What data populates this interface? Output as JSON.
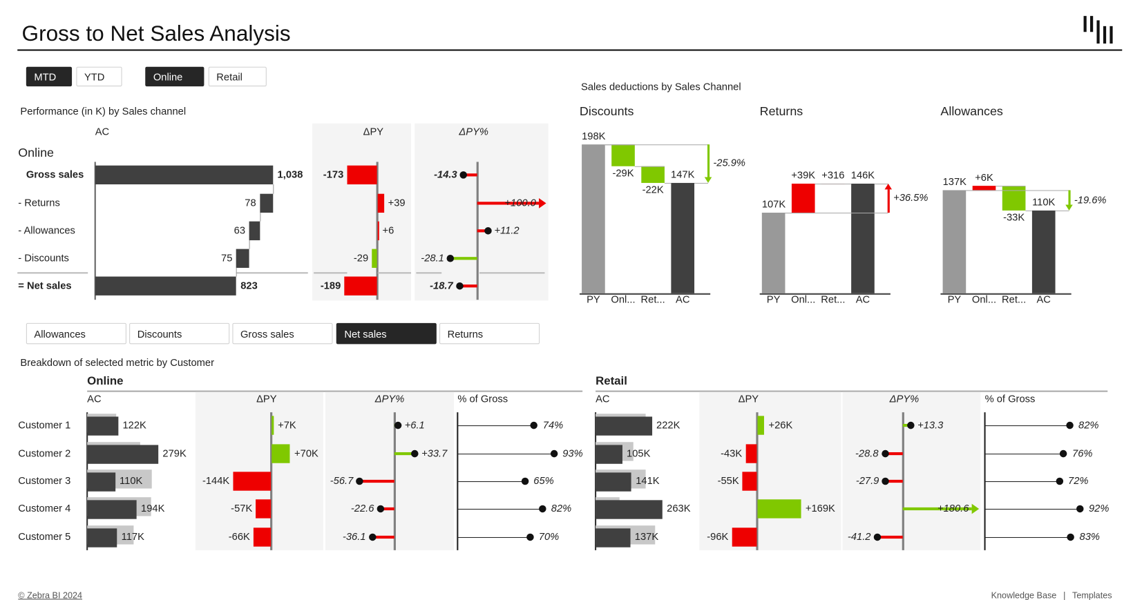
{
  "header": {
    "title": "Gross to Net Sales Analysis",
    "logo": "bars-logo"
  },
  "filters": {
    "period": [
      {
        "label": "MTD",
        "selected": true
      },
      {
        "label": "YTD",
        "selected": false
      }
    ],
    "channel": [
      {
        "label": "Online",
        "selected": true
      },
      {
        "label": "Retail",
        "selected": false
      }
    ]
  },
  "performance": {
    "title": "Performance (in K) by Sales channel",
    "channel": "Online",
    "headers": {
      "ac": "AC",
      "dpy": "ΔPY",
      "dpyp": "ΔPY%"
    },
    "rows": [
      {
        "label": "Gross sales",
        "type": "total",
        "ac": 1038,
        "ac_label": "1,038",
        "dpy": -173,
        "dpy_label": "-173",
        "dpyp": -14.3,
        "dpyp_label": "-14.3"
      },
      {
        "label": "- Returns",
        "type": "deduction",
        "ac": 78,
        "ac_label": "78",
        "dpy": 39,
        "dpy_label": "+39",
        "dpyp": 100.0,
        "dpyp_label": "+100.0"
      },
      {
        "label": "- Allowances",
        "type": "deduction",
        "ac": 63,
        "ac_label": "63",
        "dpy": 6,
        "dpy_label": "+6",
        "dpyp": 11.2,
        "dpyp_label": "+11.2"
      },
      {
        "label": "- Discounts",
        "type": "deduction",
        "ac": 75,
        "ac_label": "75",
        "dpy": -29,
        "dpy_label": "-29",
        "dpyp": -28.1,
        "dpyp_label": "-28.1"
      },
      {
        "label": "= Net sales",
        "type": "result",
        "ac": 823,
        "ac_label": "823",
        "dpy": -189,
        "dpy_label": "-189",
        "dpyp": -18.7,
        "dpyp_label": "-18.7"
      }
    ]
  },
  "deductions": {
    "title": "Sales deductions by Sales Channel",
    "charts": [
      {
        "title": "Discounts",
        "categories": [
          "PY",
          "Onl...",
          "Ret...",
          "AC"
        ],
        "py": 198,
        "py_label": "198K",
        "steps": [
          -29,
          -22
        ],
        "step_labels": [
          "-29K",
          "-22K"
        ],
        "ac": 147,
        "ac_label": "147K",
        "change_label": "-25.9%"
      },
      {
        "title": "Returns",
        "categories": [
          "PY",
          "Onl...",
          "Ret...",
          "AC"
        ],
        "py": 107,
        "py_label": "107K",
        "steps": [
          39,
          0.316
        ],
        "step_labels": [
          "+39K",
          "+316"
        ],
        "ac": 146,
        "ac_label": "146K",
        "change_label": "+36.5%"
      },
      {
        "title": "Allowances",
        "categories": [
          "PY",
          "Onl...",
          "Ret...",
          "AC"
        ],
        "py": 137,
        "py_label": "137K",
        "steps": [
          6,
          -33
        ],
        "step_labels": [
          "+6K",
          "-33K"
        ],
        "ac": 110,
        "ac_label": "110K",
        "change_label": "-19.6%"
      }
    ]
  },
  "metric_tabs": [
    {
      "label": "Allowances",
      "selected": false
    },
    {
      "label": "Discounts",
      "selected": false
    },
    {
      "label": "Gross sales",
      "selected": false
    },
    {
      "label": "Net sales",
      "selected": true
    },
    {
      "label": "Returns",
      "selected": false
    }
  ],
  "breakdown": {
    "title": "Breakdown of selected metric by Customer",
    "customers": [
      "Customer 1",
      "Customer 2",
      "Customer 3",
      "Customer 4",
      "Customer 5"
    ],
    "panels": [
      {
        "title": "Online",
        "headers": {
          "ac": "AC",
          "dpy": "ΔPY",
          "dpyp": "ΔPY%",
          "gross": "% of Gross"
        },
        "rows": [
          {
            "ac": 122,
            "ac_label": "122K",
            "dpy": 7,
            "dpy_label": "+7K",
            "dpyp": 6.1,
            "dpyp_label": "+6.1",
            "gross": 74,
            "gross_label": "74%"
          },
          {
            "ac": 279,
            "ac_label": "279K",
            "dpy": 70,
            "dpy_label": "+70K",
            "dpyp": 33.7,
            "dpyp_label": "+33.7",
            "gross": 93,
            "gross_label": "93%"
          },
          {
            "ac": 110,
            "ac_label": "110K",
            "dpy": -144,
            "dpy_label": "-144K",
            "dpyp": -56.7,
            "dpyp_label": "-56.7",
            "gross": 65,
            "gross_label": "65%"
          },
          {
            "ac": 194,
            "ac_label": "194K",
            "dpy": -57,
            "dpy_label": "-57K",
            "dpyp": -22.6,
            "dpyp_label": "-22.6",
            "gross": 82,
            "gross_label": "82%"
          },
          {
            "ac": 117,
            "ac_label": "117K",
            "dpy": -66,
            "dpy_label": "-66K",
            "dpyp": -36.1,
            "dpyp_label": "-36.1",
            "gross": 70,
            "gross_label": "70%"
          }
        ]
      },
      {
        "title": "Retail",
        "headers": {
          "ac": "AC",
          "dpy": "ΔPY",
          "dpyp": "ΔPY%",
          "gross": "% of Gross"
        },
        "rows": [
          {
            "ac": 222,
            "ac_label": "222K",
            "dpy": 26,
            "dpy_label": "+26K",
            "dpyp": 13.3,
            "dpyp_label": "+13.3",
            "gross": 82,
            "gross_label": "82%"
          },
          {
            "ac": 105,
            "ac_label": "105K",
            "dpy": -43,
            "dpy_label": "-43K",
            "dpyp": -28.8,
            "dpyp_label": "-28.8",
            "gross": 76,
            "gross_label": "76%"
          },
          {
            "ac": 141,
            "ac_label": "141K",
            "dpy": -55,
            "dpy_label": "-55K",
            "dpyp": -27.9,
            "dpyp_label": "-27.9",
            "gross": 72,
            "gross_label": "72%"
          },
          {
            "ac": 263,
            "ac_label": "263K",
            "dpy": 169,
            "dpy_label": "+169K",
            "dpyp": 180.6,
            "dpyp_label": "+180.6",
            "gross": 92,
            "gross_label": "92%"
          },
          {
            "ac": 137,
            "ac_label": "137K",
            "dpy": -96,
            "dpy_label": "-96K",
            "dpyp": -41.2,
            "dpyp_label": "-41.2",
            "gross": 83,
            "gross_label": "83%"
          }
        ]
      }
    ]
  },
  "footer": {
    "copyright": "© Zebra BI 2024",
    "links": [
      "Knowledge Base",
      "Templates"
    ],
    "separator": "|"
  },
  "colors": {
    "ac": "#404040",
    "py": "#999999",
    "py_light": "#c8c8c8",
    "good": "#80c800",
    "bad": "#ee0000",
    "panel": "#f4f4f4",
    "axis": "#808080"
  }
}
